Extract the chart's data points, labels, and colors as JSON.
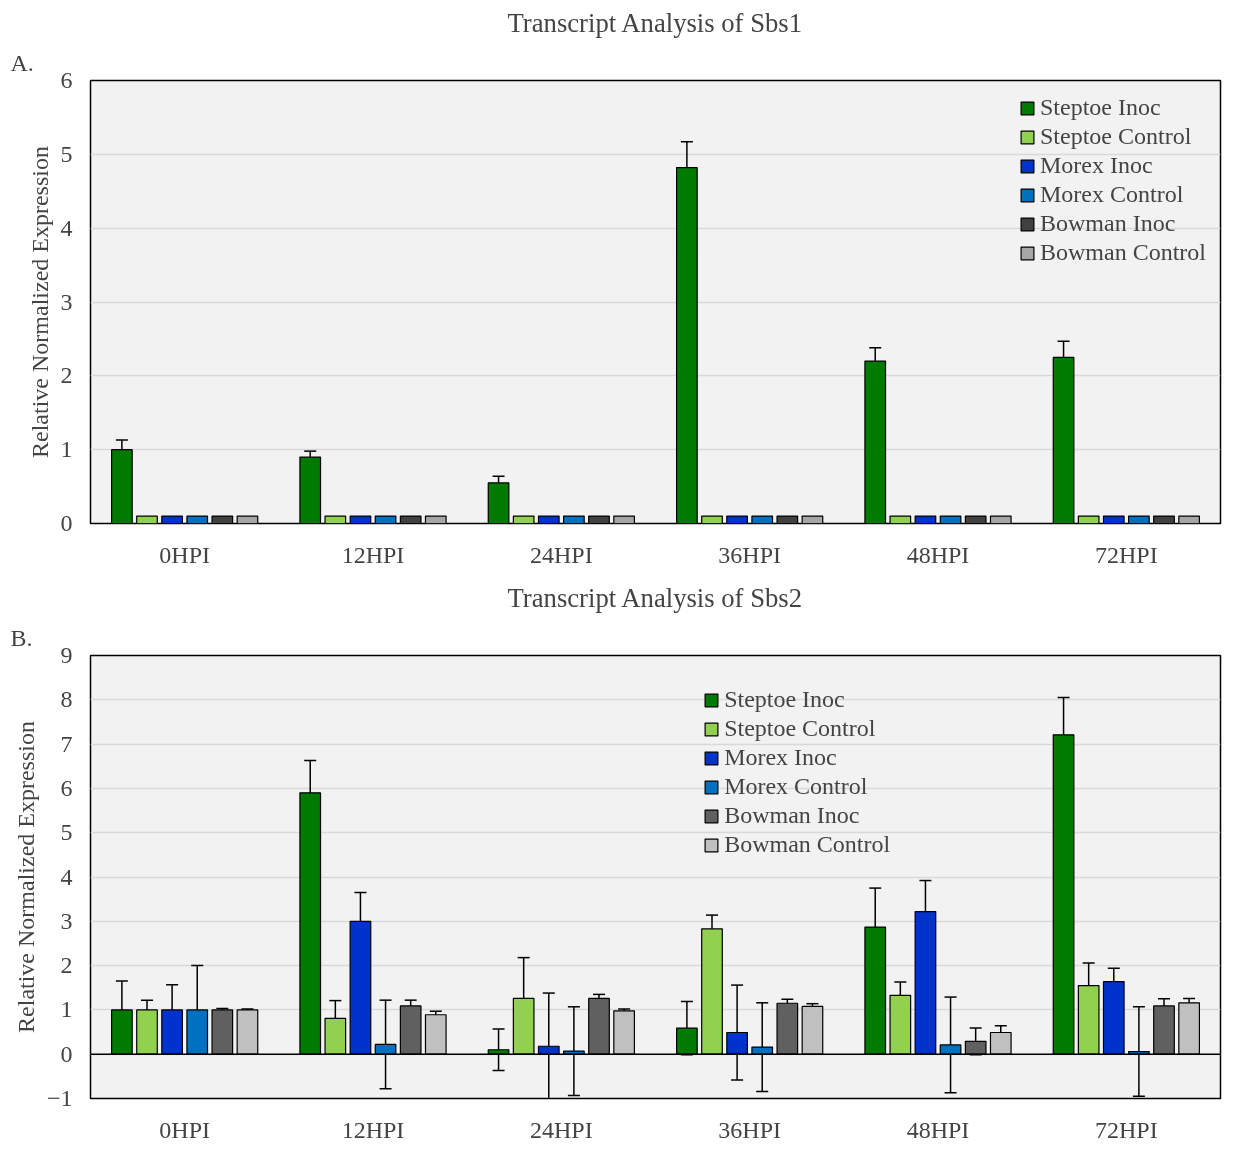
{
  "chart_data": [
    {
      "type": "bar",
      "title": "Transcript Analysis of Sbs1",
      "ylabel": "Relative Normalized Expression",
      "annotations": [
        "A."
      ],
      "categories": [
        "0HPI",
        "12HPI",
        "24HPI",
        "36HPI",
        "48HPI",
        "72HPI"
      ],
      "ylim": [
        0,
        6
      ],
      "yticks": [
        0,
        1,
        2,
        3,
        4,
        5,
        6
      ],
      "grid": "y",
      "legend": "top right",
      "series": [
        {
          "name": "Steptoe Inoc",
          "color": "#007a00",
          "values": [
            1.0,
            0.9,
            0.55,
            4.82,
            2.2,
            2.25
          ],
          "errors": [
            0.13,
            0.08,
            0.09,
            0.35,
            0.18,
            0.22
          ]
        },
        {
          "name": "Steptoe Control",
          "color": "#92d050",
          "values": [
            0.1,
            0.1,
            0.1,
            0.1,
            0.1,
            0.1
          ]
        },
        {
          "name": "Morex Inoc",
          "color": "#0033cc",
          "values": [
            0.1,
            0.1,
            0.1,
            0.1,
            0.1,
            0.1
          ]
        },
        {
          "name": "Morex Control",
          "color": "#0070c0",
          "values": [
            0.1,
            0.1,
            0.1,
            0.1,
            0.1,
            0.1
          ]
        },
        {
          "name": "Bowman Inoc",
          "color": "#404040",
          "values": [
            0.1,
            0.1,
            0.1,
            0.1,
            0.1,
            0.1
          ]
        },
        {
          "name": "Bowman Control",
          "color": "#a6a6a6",
          "values": [
            0.1,
            0.1,
            0.1,
            0.1,
            0.1,
            0.1
          ]
        }
      ]
    },
    {
      "type": "bar",
      "title": "Transcript Analysis of Sbs2",
      "ylabel": "Relative Normalized Expression",
      "annotations": [
        "B."
      ],
      "categories": [
        "0HPI",
        "12HPI",
        "24HPI",
        "36HPI",
        "48HPI",
        "72HPI"
      ],
      "ylim": [
        -1,
        9
      ],
      "yticks": [
        -1,
        0,
        1,
        2,
        3,
        4,
        5,
        6,
        7,
        8,
        9
      ],
      "grid": "y",
      "legend": "top right",
      "ref_lines": [
        {
          "axis": "y",
          "value": 0,
          "color": "#000000"
        }
      ],
      "series": [
        {
          "name": "Steptoe Inoc",
          "color": "#007a00",
          "values": [
            1.0,
            5.9,
            0.1,
            0.59,
            2.87,
            7.21
          ],
          "errors": [
            0.65,
            0.73,
            0.47,
            0.6,
            0.88,
            0.84
          ]
        },
        {
          "name": "Steptoe Control",
          "color": "#92d050",
          "values": [
            1.0,
            0.81,
            1.26,
            2.83,
            1.33,
            1.55
          ],
          "errors": [
            0.22,
            0.4,
            0.92,
            0.31,
            0.3,
            0.51
          ]
        },
        {
          "name": "Morex Inoc",
          "color": "#0033cc",
          "values": [
            1.0,
            3.0,
            0.18,
            0.49,
            3.22,
            1.64
          ],
          "errors": [
            0.57,
            0.65,
            1.2,
            1.07,
            0.7,
            0.3
          ]
        },
        {
          "name": "Morex Control",
          "color": "#0070c0",
          "values": [
            1.0,
            0.22,
            0.07,
            0.16,
            0.21,
            0.06
          ],
          "errors": [
            1.0,
            1.0,
            1.0,
            1.0,
            1.08,
            1.01
          ]
        },
        {
          "name": "Bowman Inoc",
          "color": "#606060",
          "values": [
            1.0,
            1.09,
            1.26,
            1.15,
            0.29,
            1.09
          ],
          "errors": [
            0.03,
            0.13,
            0.09,
            0.09,
            0.3,
            0.16
          ]
        },
        {
          "name": "Bowman Control",
          "color": "#c0c0c0",
          "values": [
            1.0,
            0.89,
            0.98,
            1.08,
            0.49,
            1.16
          ],
          "errors": [
            0.02,
            0.08,
            0.04,
            0.06,
            0.15,
            0.1
          ]
        }
      ]
    }
  ]
}
